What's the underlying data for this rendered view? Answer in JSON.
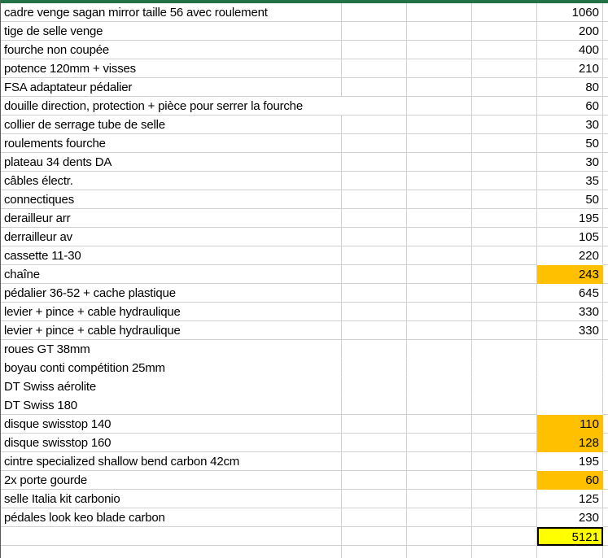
{
  "colors": {
    "top_bar_green": "#217346",
    "gridline": "#d0d0d0",
    "sheet_edge": "#595959",
    "orange_fill": "#ffc000",
    "yellow_fill": "#ffff00",
    "text": "#000000"
  },
  "spreadsheet": {
    "rows": [
      {
        "label": "cadre venge sagan mirror taille 56 avec roulement",
        "value": "1060"
      },
      {
        "label": "tige de selle venge",
        "value": "200"
      },
      {
        "label": "fourche non coupée",
        "value": "400"
      },
      {
        "label": "potence 120mm + visses",
        "value": "210"
      },
      {
        "label": "FSA adaptateur pédalier",
        "value": "80"
      },
      {
        "label": "douille direction, protection + pièce pour serrer la fourche",
        "value": "60",
        "overflow": true
      },
      {
        "label": "collier de serrage tube de selle",
        "value": "30"
      },
      {
        "label": "roulements fourche",
        "value": "50"
      },
      {
        "label": "plateau 34 dents DA",
        "value": "30"
      },
      {
        "label": "câbles électr.",
        "value": "35"
      },
      {
        "label": "connectiques",
        "value": "50"
      },
      {
        "label": "derailleur arr",
        "value": "195"
      },
      {
        "label": "derrailleur av",
        "value": "105"
      },
      {
        "label": "cassette 11-30",
        "value": "220"
      },
      {
        "label": "chaîne",
        "value": "243",
        "highlight": "orange"
      },
      {
        "label": "pédalier 36-52 + cache plastique",
        "value": "645"
      },
      {
        "label": "levier + pince + cable hydraulique",
        "value": "330"
      },
      {
        "label": "levier + pince + cable hydraulique",
        "value": "330"
      },
      {
        "label": "roues GT 38mm",
        "value": "",
        "hide_bottom_gridline": true
      },
      {
        "label": "boyau conti compétition 25mm",
        "value": "",
        "hide_bottom_gridline": true
      },
      {
        "label": "DT Swiss aérolite",
        "value": "",
        "hide_bottom_gridline": true
      },
      {
        "label": "DT Swiss 180",
        "value": ""
      },
      {
        "label": "disque swisstop 140",
        "value": "110",
        "highlight": "orange"
      },
      {
        "label": "disque swisstop 160",
        "value": "128",
        "highlight": "orange"
      },
      {
        "label": "cintre specialized shallow bend carbon 42cm",
        "value": "195"
      },
      {
        "label": "2x porte gourde",
        "value": "60",
        "highlight": "orange"
      },
      {
        "label": "selle Italia kit carbonio",
        "value": "125"
      },
      {
        "label": "pédales look keo blade carbon",
        "value": "230"
      },
      {
        "label": "",
        "value": "5121",
        "highlight": "yellow_total"
      },
      {
        "label": "",
        "value": ""
      }
    ]
  }
}
